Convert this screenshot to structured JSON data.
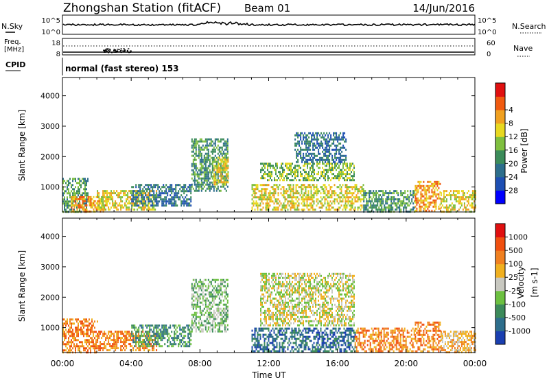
{
  "header": {
    "station": "Zhongshan Station (fitACF)",
    "beam": "Beam 01",
    "date": "14/Jun/2016"
  },
  "top_panels": {
    "nsky_label": "N.Sky",
    "nsky_ticks": [
      "10^5",
      "10^0"
    ],
    "nsearch_label": "N.Search",
    "nsearch_ticks": [
      "10^5",
      "10^0"
    ],
    "freq_label": "Freq.",
    "freq_unit": "[MHz]",
    "freq_ticks": [
      "18",
      "8"
    ],
    "nave_label": "Nave",
    "nave_ticks": [
      "60",
      "0"
    ],
    "cpid_label": "CPID",
    "cpid_value": "normal (fast stereo) 153"
  },
  "chart_data": [
    {
      "type": "heatmap",
      "panel": "power",
      "ylabel": "Slant Range [km]",
      "ylim": [
        180,
        4600
      ],
      "yticks": [
        "1000",
        "2000",
        "3000",
        "4000"
      ],
      "xlim": [
        0,
        24
      ],
      "colorbar_label": "Power [dB]",
      "colorbar_ticks": [
        "4",
        "8",
        "12",
        "16",
        "20",
        "24",
        "28"
      ],
      "colors": [
        "#0000ff",
        "#1e4fb3",
        "#2d6e8c",
        "#3c8c5a",
        "#7fbf3f",
        "#e8d820",
        "#f0a020",
        "#f05a10",
        "#e01010"
      ],
      "regions": [
        {
          "t0": 0.0,
          "t1": 1.5,
          "r0": 200,
          "r1": 1300,
          "level": 3
        },
        {
          "t0": 0.5,
          "t1": 2.5,
          "r0": 200,
          "r1": 700,
          "level": 6
        },
        {
          "t0": 2.0,
          "t1": 5.5,
          "r0": 250,
          "r1": 900,
          "level": 5
        },
        {
          "t0": 4.0,
          "t1": 7.5,
          "r0": 400,
          "r1": 1100,
          "level": 2
        },
        {
          "t0": 7.5,
          "t1": 9.6,
          "r0": 900,
          "r1": 2600,
          "level": 3
        },
        {
          "t0": 8.8,
          "t1": 9.6,
          "r0": 1100,
          "r1": 2000,
          "level": 5
        },
        {
          "t0": 11.5,
          "t1": 17.0,
          "r0": 1200,
          "r1": 1800,
          "level": 4
        },
        {
          "t0": 13.5,
          "t1": 16.5,
          "r0": 1800,
          "r1": 2800,
          "level": 2
        },
        {
          "t0": 11.0,
          "t1": 17.5,
          "r0": 250,
          "r1": 1100,
          "level": 5
        },
        {
          "t0": 17.5,
          "t1": 20.5,
          "r0": 200,
          "r1": 900,
          "level": 3
        },
        {
          "t0": 20.5,
          "t1": 22.0,
          "r0": 200,
          "r1": 1200,
          "level": 6
        },
        {
          "t0": 22.0,
          "t1": 24.0,
          "r0": 200,
          "r1": 900,
          "level": 5
        }
      ]
    },
    {
      "type": "heatmap",
      "panel": "velocity",
      "ylabel": "Slant Range [km]",
      "ylim": [
        180,
        4600
      ],
      "yticks": [
        "1000",
        "2000",
        "3000",
        "4000"
      ],
      "xlim": [
        0,
        24
      ],
      "xticks": [
        "00:00",
        "04:00",
        "08:00",
        "12:00",
        "16:00",
        "20:00",
        "00:00"
      ],
      "xlabel": "Time UT",
      "colorbar_label": "Velocity",
      "colorbar_unit": "[m s-1]",
      "colorbar_ticks": [
        "1000",
        "500",
        "100",
        "25",
        "-25",
        "-100",
        "-500",
        "-1000"
      ],
      "colors": [
        "#1a3fb0",
        "#2e6e8c",
        "#3c8a5a",
        "#6cc040",
        "#c8c8c0",
        "#f0b020",
        "#f08020",
        "#f05010",
        "#e01010"
      ],
      "regions": [
        {
          "t0": 0.0,
          "t1": 2.0,
          "r0": 200,
          "r1": 1300,
          "level": 6
        },
        {
          "t0": 2.0,
          "t1": 5.5,
          "r0": 250,
          "r1": 900,
          "level": 6
        },
        {
          "t0": 4.0,
          "t1": 7.5,
          "r0": 400,
          "r1": 1100,
          "level": 2
        },
        {
          "t0": 7.5,
          "t1": 9.6,
          "r0": 900,
          "r1": 2600,
          "level": 3
        },
        {
          "t0": 11.5,
          "t1": 17.0,
          "r0": 1100,
          "r1": 2800,
          "level": 4
        },
        {
          "t0": 11.0,
          "t1": 17.0,
          "r0": 250,
          "r1": 1000,
          "level": 1
        },
        {
          "t0": 17.0,
          "t1": 20.5,
          "r0": 200,
          "r1": 1000,
          "level": 6
        },
        {
          "t0": 20.5,
          "t1": 22.0,
          "r0": 200,
          "r1": 1200,
          "level": 6
        },
        {
          "t0": 22.0,
          "t1": 24.0,
          "r0": 200,
          "r1": 900,
          "level": 5
        }
      ]
    }
  ]
}
